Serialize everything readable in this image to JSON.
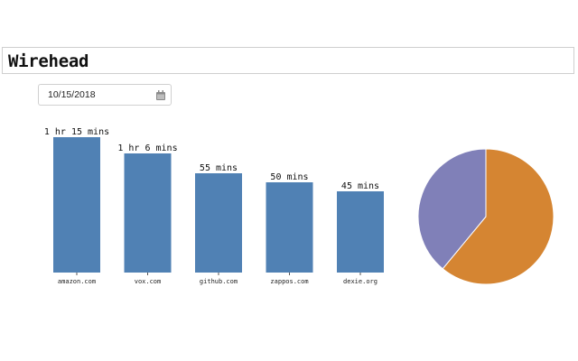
{
  "app": {
    "title": "Wirehead"
  },
  "date_picker": {
    "value": "10/15/2018",
    "icon": "calendar-icon"
  },
  "chart_data": [
    {
      "type": "bar",
      "categories": [
        "amazon.com",
        "vox.com",
        "github.com",
        "zappos.com",
        "dexie.org"
      ],
      "values": [
        75,
        66,
        55,
        50,
        45
      ],
      "data_labels": [
        "1 hr 15 mins",
        "1 hr 6 mins",
        "55 mins",
        "50 mins",
        "45 mins"
      ],
      "ylim": [
        0,
        75
      ],
      "colors": {
        "bar": "#5081b4"
      }
    },
    {
      "type": "pie",
      "slices": [
        {
          "value": 61,
          "color": "#d58532"
        },
        {
          "value": 39,
          "color": "#8080b8"
        }
      ]
    }
  ]
}
